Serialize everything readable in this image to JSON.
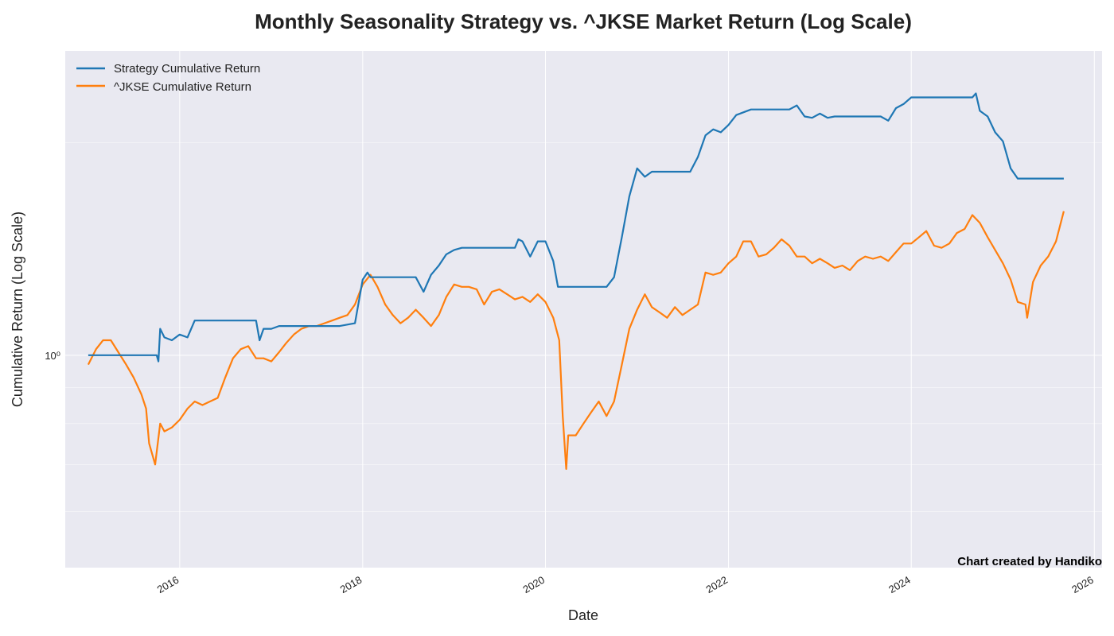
{
  "chart_data": {
    "type": "line",
    "title": "Monthly Seasonality Strategy vs. ^JKSE Market Return (Log Scale)",
    "xlabel": "Date",
    "ylabel": "Cumulative Return (Log Scale)",
    "y_scale": "log",
    "ylim": [
      0.5,
      2.7
    ],
    "xlim": [
      "2014-10-01",
      "2026-02-01"
    ],
    "x_ticks": [
      "2016",
      "2018",
      "2020",
      "2022",
      "2024",
      "2026"
    ],
    "y_ticks": [
      {
        "value": 1.0,
        "label": "10⁰"
      }
    ],
    "grid": true,
    "legend": "top-left",
    "credit": "Chart created by Handiko",
    "colors": {
      "background": "#e9e9f1",
      "grid": "#ffffff",
      "strategy": "#1f77b4",
      "market": "#ff7f0e"
    },
    "series": [
      {
        "name": "Strategy Cumulative Return",
        "x": [
          "2015-01-01",
          "2015-10-01",
          "2015-10-08",
          "2015-10-15",
          "2015-11-01",
          "2015-12-01",
          "2016-01-01",
          "2016-02-01",
          "2016-03-01",
          "2016-04-01",
          "2016-07-01",
          "2016-11-01",
          "2016-11-15",
          "2016-12-01",
          "2017-01-01",
          "2017-02-01",
          "2017-03-01",
          "2017-06-01",
          "2017-10-01",
          "2017-12-01",
          "2018-01-01",
          "2018-01-20",
          "2018-02-01",
          "2018-03-01",
          "2018-08-01",
          "2018-09-01",
          "2018-10-01",
          "2018-11-01",
          "2018-12-01",
          "2019-01-01",
          "2019-02-01",
          "2019-03-01",
          "2019-06-01",
          "2019-09-01",
          "2019-09-15",
          "2019-10-01",
          "2019-11-01",
          "2019-12-01",
          "2020-01-01",
          "2020-02-01",
          "2020-02-20",
          "2020-03-01",
          "2020-06-01",
          "2020-09-01",
          "2020-10-01",
          "2020-11-01",
          "2020-12-01",
          "2021-01-01",
          "2021-02-01",
          "2021-03-01",
          "2021-04-01",
          "2021-05-01",
          "2021-08-01",
          "2021-09-01",
          "2021-10-01",
          "2021-11-01",
          "2021-12-01",
          "2022-01-01",
          "2022-02-01",
          "2022-04-01",
          "2022-06-01",
          "2022-09-01",
          "2022-10-01",
          "2022-11-01",
          "2022-12-01",
          "2023-01-01",
          "2023-02-01",
          "2023-03-01",
          "2023-06-01",
          "2023-09-01",
          "2023-10-01",
          "2023-11-01",
          "2023-12-01",
          "2024-01-01",
          "2024-02-01",
          "2024-03-01",
          "2024-06-01",
          "2024-09-01",
          "2024-09-15",
          "2024-10-01",
          "2024-11-01",
          "2024-12-01",
          "2025-01-01",
          "2025-02-01",
          "2025-03-01",
          "2025-03-20",
          "2025-04-01",
          "2025-06-01",
          "2025-09-01"
        ],
        "values": [
          1.0,
          1.0,
          0.98,
          1.09,
          1.06,
          1.05,
          1.07,
          1.06,
          1.12,
          1.12,
          1.12,
          1.12,
          1.05,
          1.09,
          1.09,
          1.1,
          1.1,
          1.1,
          1.1,
          1.11,
          1.28,
          1.31,
          1.29,
          1.29,
          1.29,
          1.23,
          1.3,
          1.34,
          1.39,
          1.41,
          1.42,
          1.42,
          1.42,
          1.42,
          1.46,
          1.45,
          1.38,
          1.45,
          1.45,
          1.36,
          1.25,
          1.25,
          1.25,
          1.25,
          1.29,
          1.47,
          1.68,
          1.84,
          1.79,
          1.82,
          1.82,
          1.82,
          1.82,
          1.91,
          2.05,
          2.09,
          2.07,
          2.12,
          2.19,
          2.23,
          2.23,
          2.23,
          2.26,
          2.18,
          2.17,
          2.2,
          2.17,
          2.18,
          2.18,
          2.18,
          2.15,
          2.24,
          2.27,
          2.32,
          2.32,
          2.32,
          2.32,
          2.32,
          2.35,
          2.22,
          2.18,
          2.07,
          2.01,
          1.84,
          1.78,
          1.78,
          1.78,
          1.78,
          1.78
        ]
      },
      {
        "name": "^JKSE Cumulative Return",
        "x": [
          "2015-01-01",
          "2015-02-01",
          "2015-03-01",
          "2015-04-01",
          "2015-05-01",
          "2015-06-01",
          "2015-07-01",
          "2015-08-01",
          "2015-08-20",
          "2015-09-01",
          "2015-09-25",
          "2015-10-15",
          "2015-11-01",
          "2015-12-01",
          "2016-01-01",
          "2016-02-01",
          "2016-03-01",
          "2016-04-01",
          "2016-05-01",
          "2016-06-01",
          "2016-07-01",
          "2016-08-01",
          "2016-09-01",
          "2016-10-01",
          "2016-11-01",
          "2016-12-01",
          "2017-01-01",
          "2017-02-01",
          "2017-03-01",
          "2017-04-01",
          "2017-05-01",
          "2017-06-01",
          "2017-07-01",
          "2017-08-01",
          "2017-09-01",
          "2017-10-01",
          "2017-11-01",
          "2017-12-01",
          "2018-01-01",
          "2018-02-01",
          "2018-03-01",
          "2018-04-01",
          "2018-05-01",
          "2018-06-01",
          "2018-07-01",
          "2018-08-01",
          "2018-09-01",
          "2018-10-01",
          "2018-11-01",
          "2018-12-01",
          "2019-01-01",
          "2019-02-01",
          "2019-03-01",
          "2019-04-01",
          "2019-05-01",
          "2019-06-01",
          "2019-07-01",
          "2019-08-01",
          "2019-09-01",
          "2019-10-01",
          "2019-11-01",
          "2019-12-01",
          "2020-01-01",
          "2020-02-01",
          "2020-02-25",
          "2020-03-10",
          "2020-03-24",
          "2020-04-01",
          "2020-05-01",
          "2020-06-01",
          "2020-07-01",
          "2020-08-01",
          "2020-09-01",
          "2020-10-01",
          "2020-11-01",
          "2020-12-01",
          "2021-01-01",
          "2021-02-01",
          "2021-03-01",
          "2021-04-01",
          "2021-05-01",
          "2021-06-01",
          "2021-07-01",
          "2021-08-01",
          "2021-09-01",
          "2021-10-01",
          "2021-11-01",
          "2021-12-01",
          "2022-01-01",
          "2022-02-01",
          "2022-03-01",
          "2022-04-01",
          "2022-05-01",
          "2022-06-01",
          "2022-07-01",
          "2022-08-01",
          "2022-09-01",
          "2022-10-01",
          "2022-11-01",
          "2022-12-01",
          "2023-01-01",
          "2023-02-01",
          "2023-03-01",
          "2023-04-01",
          "2023-05-01",
          "2023-06-01",
          "2023-07-01",
          "2023-08-01",
          "2023-09-01",
          "2023-10-01",
          "2023-11-01",
          "2023-12-01",
          "2024-01-01",
          "2024-02-01",
          "2024-03-01",
          "2024-04-01",
          "2024-05-01",
          "2024-06-01",
          "2024-07-01",
          "2024-08-01",
          "2024-09-01",
          "2024-10-01",
          "2024-11-01",
          "2024-12-01",
          "2025-01-01",
          "2025-02-01",
          "2025-03-01",
          "2025-04-01",
          "2025-04-08",
          "2025-05-01",
          "2025-06-01",
          "2025-07-01",
          "2025-08-01",
          "2025-09-01"
        ],
        "values": [
          0.97,
          1.02,
          1.05,
          1.05,
          1.01,
          0.97,
          0.93,
          0.88,
          0.84,
          0.75,
          0.7,
          0.8,
          0.78,
          0.79,
          0.81,
          0.84,
          0.86,
          0.85,
          0.86,
          0.87,
          0.93,
          0.99,
          1.02,
          1.03,
          0.99,
          0.99,
          0.98,
          1.01,
          1.04,
          1.07,
          1.09,
          1.1,
          1.1,
          1.11,
          1.12,
          1.13,
          1.14,
          1.18,
          1.26,
          1.3,
          1.25,
          1.18,
          1.14,
          1.11,
          1.13,
          1.16,
          1.13,
          1.1,
          1.14,
          1.21,
          1.26,
          1.25,
          1.25,
          1.24,
          1.18,
          1.23,
          1.24,
          1.22,
          1.2,
          1.21,
          1.19,
          1.22,
          1.19,
          1.13,
          1.05,
          0.82,
          0.69,
          0.77,
          0.77,
          0.8,
          0.83,
          0.86,
          0.82,
          0.86,
          0.97,
          1.09,
          1.16,
          1.22,
          1.17,
          1.15,
          1.13,
          1.17,
          1.14,
          1.16,
          1.18,
          1.31,
          1.3,
          1.31,
          1.35,
          1.38,
          1.45,
          1.45,
          1.38,
          1.39,
          1.42,
          1.46,
          1.43,
          1.38,
          1.38,
          1.35,
          1.37,
          1.35,
          1.33,
          1.34,
          1.32,
          1.36,
          1.38,
          1.37,
          1.38,
          1.36,
          1.4,
          1.44,
          1.44,
          1.47,
          1.5,
          1.43,
          1.42,
          1.44,
          1.49,
          1.51,
          1.58,
          1.54,
          1.47,
          1.41,
          1.35,
          1.28,
          1.19,
          1.18,
          1.13,
          1.27,
          1.34,
          1.38,
          1.45,
          1.6
        ]
      }
    ]
  }
}
